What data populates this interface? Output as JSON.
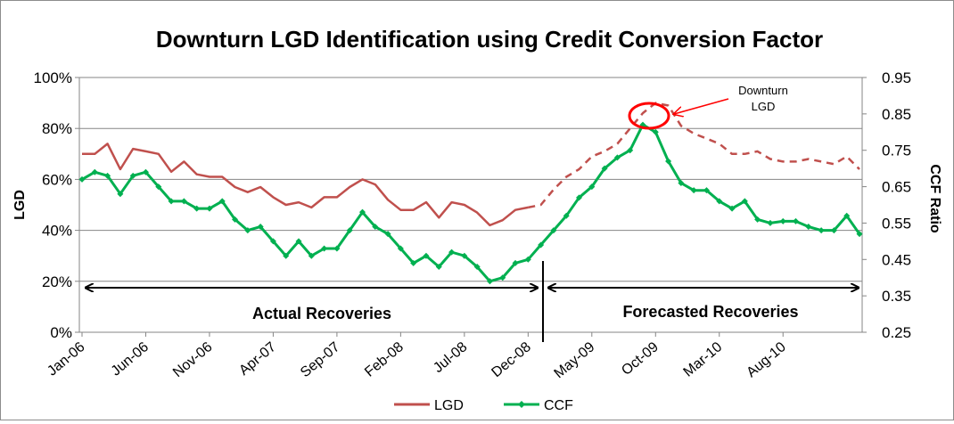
{
  "chart_data": {
    "type": "line",
    "title": "Downturn LGD Identification using Credit Conversion Factor",
    "ylabel": "LGD",
    "y2label": "CCF Ratio",
    "ylim": [
      0,
      1
    ],
    "y2lim": [
      0.25,
      0.95
    ],
    "yticks": [
      "0%",
      "20%",
      "40%",
      "60%",
      "80%",
      "100%"
    ],
    "y2ticks": [
      "0.25",
      "0.35",
      "0.45",
      "0.55",
      "0.65",
      "0.75",
      "0.85",
      "0.95"
    ],
    "xticks": [
      "Jan-06",
      "Jun-06",
      "Nov-06",
      "Apr-07",
      "Sep-07",
      "Feb-08",
      "Jul-08",
      "Dec-08",
      "May-09",
      "Oct-09",
      "Mar-10",
      "Aug-10"
    ],
    "grid": "horizontal",
    "legend": "bottom",
    "series": [
      {
        "name": "LGD",
        "color": "#c0504d",
        "axis": "left",
        "actual_until_index": 35,
        "values": [
          0.7,
          0.7,
          0.74,
          0.64,
          0.72,
          0.71,
          0.7,
          0.63,
          0.67,
          0.62,
          0.61,
          0.61,
          0.57,
          0.55,
          0.57,
          0.53,
          0.5,
          0.51,
          0.49,
          0.53,
          0.53,
          0.57,
          0.6,
          0.58,
          0.52,
          0.48,
          0.48,
          0.51,
          0.45,
          0.51,
          0.5,
          0.47,
          0.42,
          0.44,
          0.48,
          0.49,
          0.5,
          0.56,
          0.61,
          0.64,
          0.69,
          0.71,
          0.74,
          0.8,
          0.86,
          0.9,
          0.89,
          0.81,
          0.78,
          0.76,
          0.74,
          0.7,
          0.7,
          0.71,
          0.68,
          0.67,
          0.67,
          0.68,
          0.67,
          0.66,
          0.69,
          0.64
        ]
      },
      {
        "name": "CCF",
        "color": "#00b050",
        "axis": "right",
        "values": [
          0.67,
          0.69,
          0.68,
          0.63,
          0.68,
          0.69,
          0.65,
          0.61,
          0.61,
          0.59,
          0.59,
          0.61,
          0.56,
          0.53,
          0.54,
          0.5,
          0.46,
          0.5,
          0.46,
          0.48,
          0.48,
          0.53,
          0.58,
          0.54,
          0.52,
          0.48,
          0.44,
          0.46,
          0.43,
          0.47,
          0.46,
          0.43,
          0.39,
          0.4,
          0.44,
          0.45,
          0.49,
          0.53,
          0.57,
          0.62,
          0.65,
          0.7,
          0.73,
          0.75,
          0.82,
          0.8,
          0.72,
          0.66,
          0.64,
          0.64,
          0.61,
          0.59,
          0.61,
          0.56,
          0.55,
          0.555,
          0.555,
          0.54,
          0.53,
          0.53,
          0.57,
          0.52
        ]
      }
    ],
    "annotations": {
      "actual": "Actual Recoveries",
      "forecast": "Forecasted Recoveries",
      "downturn_line1": "Downturn",
      "downturn_line2": "LGD"
    }
  }
}
